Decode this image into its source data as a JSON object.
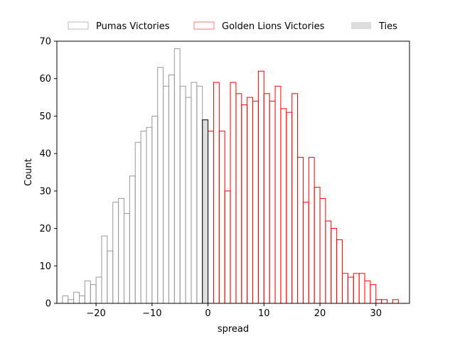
{
  "chart_data": {
    "type": "bar",
    "xlabel": "spread",
    "ylabel": "Count",
    "xlim": [
      -27,
      36
    ],
    "ylim": [
      0,
      70
    ],
    "xticks": [
      -20,
      -10,
      0,
      10,
      20,
      30
    ],
    "xtick_labels": [
      "−20",
      "−10",
      "0",
      "10",
      "20",
      "30"
    ],
    "yticks": [
      0,
      10,
      20,
      30,
      40,
      50,
      60,
      70
    ],
    "grid": false,
    "legend_position": "top-center",
    "bin_width": 1,
    "series": [
      {
        "name": "Pumas Victories",
        "edge_color": "#999999",
        "fill_color": "none",
        "bins": [
          {
            "x": -26,
            "count": 2
          },
          {
            "x": -25,
            "count": 1
          },
          {
            "x": -24,
            "count": 3
          },
          {
            "x": -23,
            "count": 2
          },
          {
            "x": -22,
            "count": 6
          },
          {
            "x": -21,
            "count": 5
          },
          {
            "x": -20,
            "count": 7
          },
          {
            "x": -19,
            "count": 18
          },
          {
            "x": -18,
            "count": 14
          },
          {
            "x": -17,
            "count": 27
          },
          {
            "x": -16,
            "count": 28
          },
          {
            "x": -15,
            "count": 24
          },
          {
            "x": -14,
            "count": 34
          },
          {
            "x": -13,
            "count": 43
          },
          {
            "x": -12,
            "count": 46
          },
          {
            "x": -11,
            "count": 47
          },
          {
            "x": -10,
            "count": 50
          },
          {
            "x": -9,
            "count": 63
          },
          {
            "x": -8,
            "count": 58
          },
          {
            "x": -7,
            "count": 61
          },
          {
            "x": -6,
            "count": 68
          },
          {
            "x": -5,
            "count": 58
          },
          {
            "x": -4,
            "count": 55
          },
          {
            "x": -3,
            "count": 59
          },
          {
            "x": -2,
            "count": 58
          }
        ]
      },
      {
        "name": "Golden Lions Victories",
        "edge_color": "#ff0000",
        "fill_color": "none",
        "bins": [
          {
            "x": 0,
            "count": 46
          },
          {
            "x": 1,
            "count": 59
          },
          {
            "x": 2,
            "count": 46
          },
          {
            "x": 3,
            "count": 30
          },
          {
            "x": 4,
            "count": 59
          },
          {
            "x": 5,
            "count": 56
          },
          {
            "x": 6,
            "count": 53
          },
          {
            "x": 7,
            "count": 55
          },
          {
            "x": 8,
            "count": 54
          },
          {
            "x": 9,
            "count": 62
          },
          {
            "x": 10,
            "count": 56
          },
          {
            "x": 11,
            "count": 54
          },
          {
            "x": 12,
            "count": 58
          },
          {
            "x": 13,
            "count": 52
          },
          {
            "x": 14,
            "count": 51
          },
          {
            "x": 15,
            "count": 56
          },
          {
            "x": 16,
            "count": 39
          },
          {
            "x": 17,
            "count": 27
          },
          {
            "x": 18,
            "count": 39
          },
          {
            "x": 19,
            "count": 31
          },
          {
            "x": 20,
            "count": 28
          },
          {
            "x": 21,
            "count": 22
          },
          {
            "x": 22,
            "count": 20
          },
          {
            "x": 23,
            "count": 17
          },
          {
            "x": 24,
            "count": 8
          },
          {
            "x": 25,
            "count": 7
          },
          {
            "x": 26,
            "count": 8
          },
          {
            "x": 27,
            "count": 8
          },
          {
            "x": 28,
            "count": 6
          },
          {
            "x": 29,
            "count": 5
          },
          {
            "x": 30,
            "count": 1
          },
          {
            "x": 31,
            "count": 1
          },
          {
            "x": 32,
            "count": 0
          },
          {
            "x": 33,
            "count": 1
          }
        ]
      },
      {
        "name": "Ties",
        "edge_color": "#000000",
        "fill_color": "#dddddd",
        "bins": [
          {
            "x": -1,
            "count": 49
          }
        ]
      }
    ]
  }
}
